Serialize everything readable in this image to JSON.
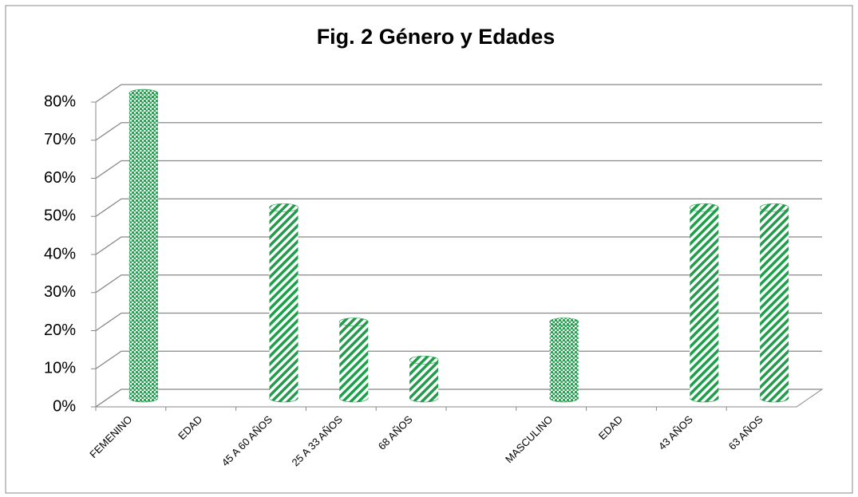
{
  "chart_data": {
    "type": "bar3d",
    "title": "Fig. 2 Género y Edades",
    "categories": [
      "FEMENINO",
      "EDAD",
      "45 A 60 AÑOS",
      "25 A 33 AÑOS",
      "68 AÑOS",
      null,
      "MASCULINO",
      "EDAD",
      "43 AÑOS",
      "63 AÑOS"
    ],
    "values": [
      80,
      null,
      50,
      20,
      10,
      null,
      20,
      null,
      50,
      50
    ],
    "bar_patterns": [
      "checker",
      null,
      "stripes",
      "stripes",
      "stripes",
      null,
      "checker",
      null,
      "stripes",
      "stripes"
    ],
    "color": "#1e9e4a",
    "ylim": [
      0,
      80
    ],
    "yticks": [
      {
        "value": 0,
        "label": "0%"
      },
      {
        "value": 10,
        "label": "10%"
      },
      {
        "value": 20,
        "label": "20%"
      },
      {
        "value": 30,
        "label": "30%"
      },
      {
        "value": 40,
        "label": "40%"
      },
      {
        "value": 50,
        "label": "50%"
      },
      {
        "value": 60,
        "label": "60%"
      },
      {
        "value": 70,
        "label": "70%"
      },
      {
        "value": 80,
        "label": "80%"
      }
    ],
    "grid": true
  }
}
